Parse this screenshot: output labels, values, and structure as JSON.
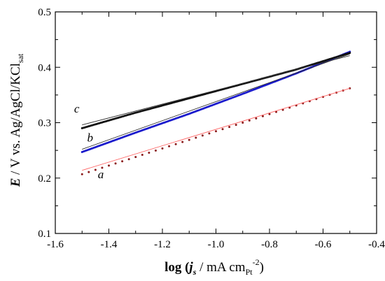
{
  "chart_data": {
    "type": "line",
    "xlim": [
      -1.6,
      -0.4
    ],
    "ylim": [
      0.1,
      0.5
    ],
    "x_ticks": [
      -1.6,
      -1.4,
      -1.2,
      -1.0,
      -0.8,
      -0.6,
      -0.4
    ],
    "x_tick_labels": [
      "-1.6",
      "-1.4",
      "-1.2",
      "-1.0",
      "-0.8",
      "-0.6",
      "-0.4"
    ],
    "y_ticks": [
      0.1,
      0.2,
      0.3,
      0.4,
      0.5
    ],
    "y_tick_labels": [
      "0.1",
      "0.2",
      "0.3",
      "0.4",
      "0.5"
    ],
    "xlabel": {
      "prefix": "log (",
      "var": "j",
      "var_sub": "s",
      "mid": " / mA cm",
      "unit_sub": "Pt",
      "unit_sup": "-2",
      "suffix": ")"
    },
    "ylabel": {
      "var": "E",
      "mid": " / V vs. Ag/AgCl/KCl",
      "sub": "sat"
    },
    "grid": false,
    "series": [
      {
        "name": "a",
        "color": "#8b1a1a",
        "fit_color": "#ff6666",
        "x": [
          -1.5,
          -0.5
        ],
        "y": [
          0.207,
          0.362
        ],
        "fit_x": [
          -1.5,
          -0.5
        ],
        "fit_y": [
          0.214,
          0.362
        ]
      },
      {
        "name": "b",
        "color": "#1a1acc",
        "fit_color": "#2a2a2a",
        "x": [
          -1.5,
          -1.3,
          -1.1,
          -0.9,
          -0.7,
          -0.5
        ],
        "y": [
          0.247,
          0.282,
          0.316,
          0.352,
          0.389,
          0.428
        ],
        "fit_x": [
          -1.5,
          -0.5
        ],
        "fit_y": [
          0.252,
          0.424
        ]
      },
      {
        "name": "c",
        "color": "#111111",
        "fit_color": "#333333",
        "x": [
          -1.5,
          -1.3,
          -1.1,
          -0.9,
          -0.7,
          -0.5
        ],
        "y": [
          0.29,
          0.318,
          0.344,
          0.37,
          0.396,
          0.426
        ],
        "fit_x": [
          -1.5,
          -0.5
        ],
        "fit_y": [
          0.296,
          0.421
        ]
      }
    ],
    "annotations": [
      {
        "text": "a",
        "x": -1.43,
        "y": 0.2
      },
      {
        "text": "b",
        "x": -1.47,
        "y": 0.266
      },
      {
        "text": "c",
        "x": -1.52,
        "y": 0.318
      }
    ]
  }
}
